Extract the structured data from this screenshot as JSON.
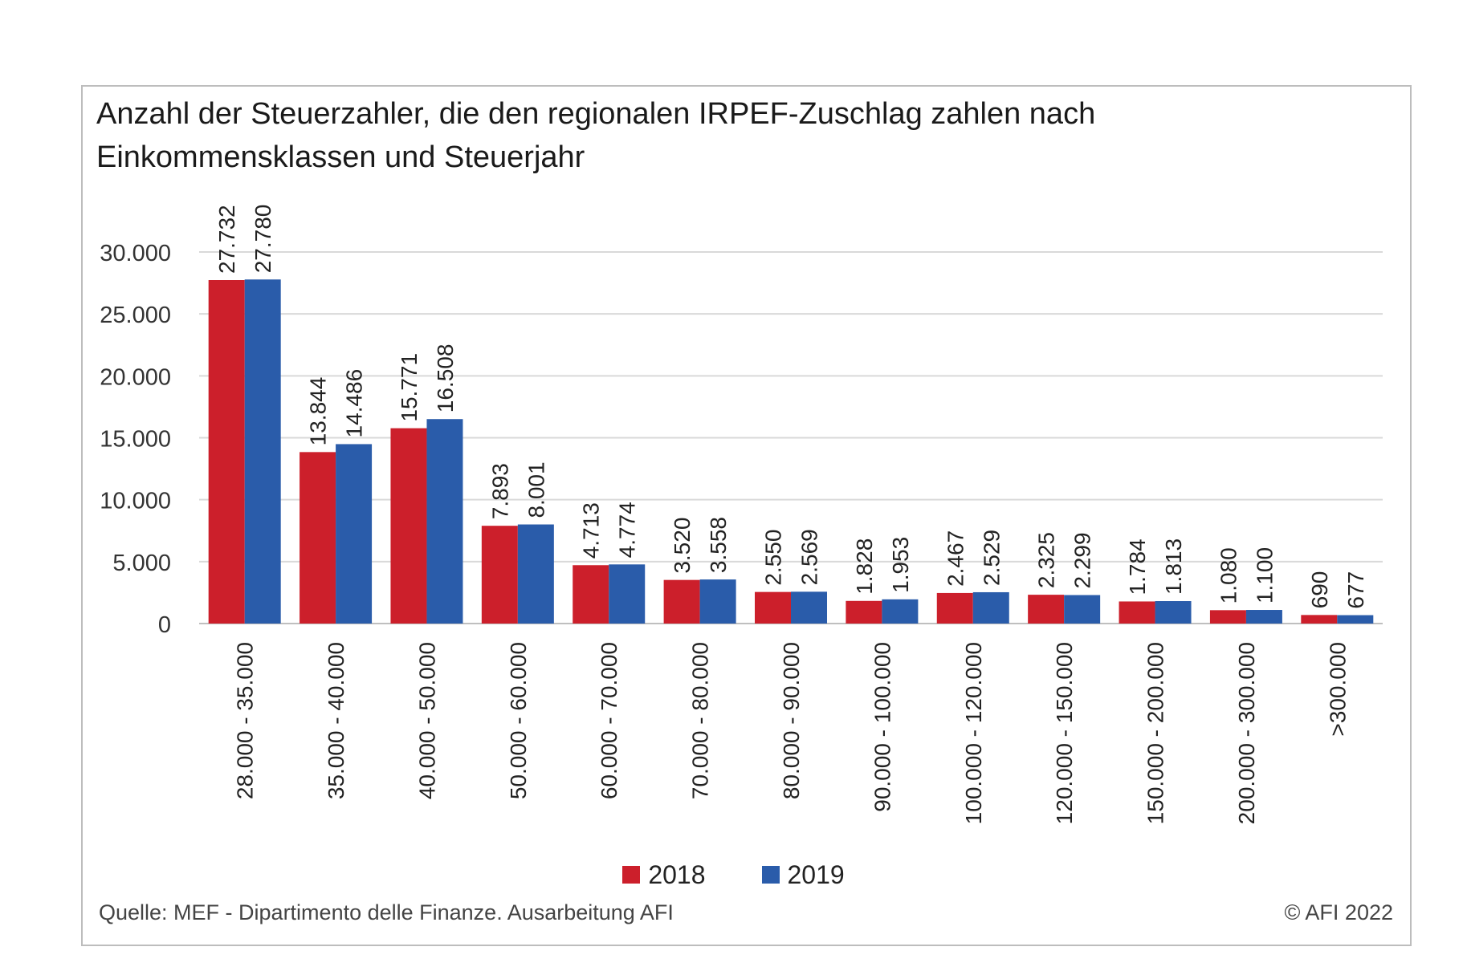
{
  "title_line1": "Anzahl der Steuerzahler, die den regionalen IRPEF-Zuschlag zahlen nach",
  "title_line2": "Einkommensklassen und Steuerjahr",
  "source": "Quelle: MEF - Dipartimento delle Finanze. Ausarbeitung AFI",
  "copyright": "© AFI 2022",
  "chart_data": {
    "type": "bar",
    "title": "Anzahl der Steuerzahler, die den regionalen IRPEF-Zuschlag zahlen nach Einkommensklassen und Steuerjahr",
    "categories": [
      "28.000 - 35.000",
      "35.000 - 40.000",
      "40.000 - 50.000",
      "50.000 - 60.000",
      "60.000 - 70.000",
      "70.000 - 80.000",
      "80.000 - 90.000",
      "90.000 - 100.000",
      "100.000 - 120.000",
      "120.000 - 150.000",
      "150.000 - 200.000",
      "200.000 - 300.000",
      ">300.000"
    ],
    "series": [
      {
        "name": "2018",
        "color": "#cc1f2b",
        "values": [
          27732,
          13844,
          15771,
          7893,
          4713,
          3520,
          2550,
          1828,
          2467,
          2325,
          1784,
          1080,
          690
        ],
        "labels": [
          "27.732",
          "13.844",
          "15.771",
          "7.893",
          "4.713",
          "3.520",
          "2.550",
          "1.828",
          "2.467",
          "2.325",
          "1.784",
          "1.080",
          "690"
        ]
      },
      {
        "name": "2019",
        "color": "#2a5caa",
        "values": [
          27780,
          14486,
          16508,
          8001,
          4774,
          3558,
          2569,
          1953,
          2529,
          2299,
          1813,
          1100,
          677
        ],
        "labels": [
          "27.780",
          "14.486",
          "16.508",
          "8.001",
          "4.774",
          "3.558",
          "2.569",
          "1.953",
          "2.529",
          "2.299",
          "1.813",
          "1.100",
          "677"
        ]
      }
    ],
    "yticks": [
      0,
      5000,
      10000,
      15000,
      20000,
      25000,
      30000
    ],
    "ytick_labels": [
      "0",
      "5.000",
      "10.000",
      "15.000",
      "20.000",
      "25.000",
      "30.000"
    ],
    "ylim": [
      0,
      30000
    ],
    "grid": true,
    "legend": "bottom-center",
    "xlabel": "",
    "ylabel": ""
  }
}
